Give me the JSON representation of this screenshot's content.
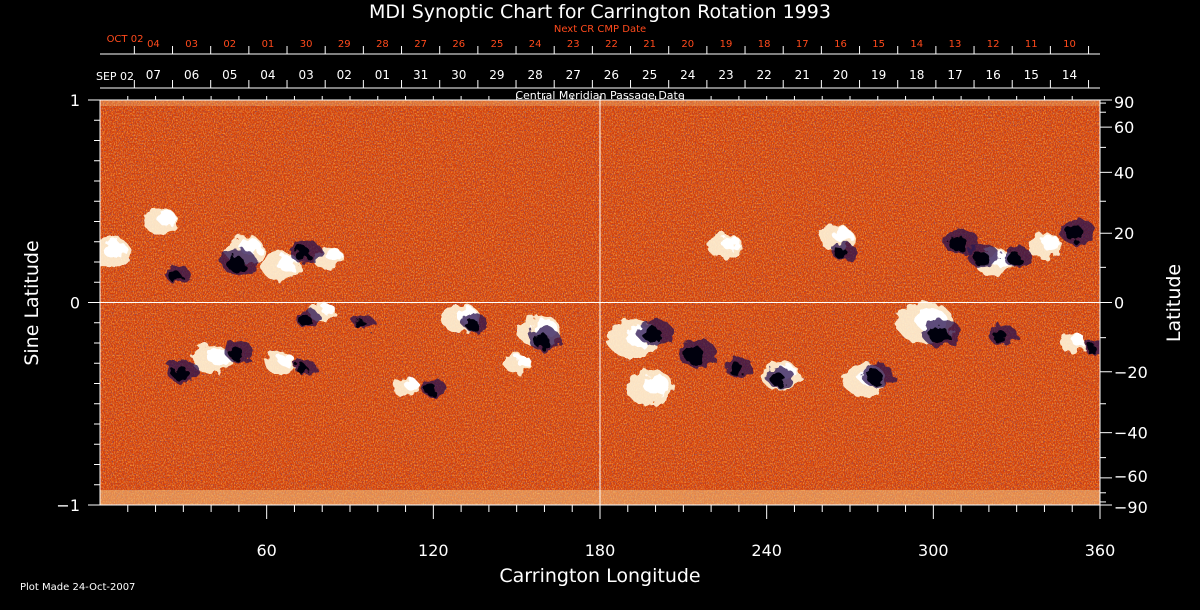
{
  "chart_data": {
    "type": "heatmap",
    "title": "MDI Synoptic Chart for Carrington Rotation 1993",
    "xlabel": "Carrington Longitude",
    "ylabel_left": "Sine Latitude",
    "ylabel_right": "Latitude",
    "xlim": [
      0,
      360
    ],
    "ylim": [
      -1,
      1
    ],
    "x_ticks": [
      "60",
      "120",
      "180",
      "240",
      "300",
      "360"
    ],
    "x_tick_values": [
      60,
      120,
      180,
      240,
      300,
      360
    ],
    "y_left_ticks": [
      {
        "value": 1,
        "label": "1"
      },
      {
        "value": 0,
        "label": "0"
      },
      {
        "value": -1,
        "label": "−1"
      }
    ],
    "y_right_ticks": [
      {
        "value": 90,
        "label": "90"
      },
      {
        "value": 60,
        "label": "60"
      },
      {
        "value": 40,
        "label": "40"
      },
      {
        "value": 20,
        "label": "20"
      },
      {
        "value": 0,
        "label": "0"
      },
      {
        "value": -20,
        "label": "−20"
      },
      {
        "value": -40,
        "label": "−40"
      },
      {
        "value": -60,
        "label": "−60"
      },
      {
        "value": -90,
        "label": "−90"
      }
    ],
    "top_axis_current": {
      "caption": "Central Meridian Passage Date",
      "start_label": "SEP 02",
      "dates": [
        "07",
        "06",
        "05",
        "04",
        "03",
        "02",
        "01",
        "31",
        "30",
        "29",
        "28",
        "27",
        "26",
        "25",
        "24",
        "23",
        "22",
        "21",
        "20",
        "19",
        "18",
        "17",
        "16",
        "15",
        "14"
      ]
    },
    "top_axis_next": {
      "caption": "Next CR CMP Date",
      "start_label": "OCT 02",
      "dates": [
        "04",
        "03",
        "02",
        "01",
        "30",
        "29",
        "28",
        "27",
        "26",
        "25",
        "24",
        "23",
        "22",
        "21",
        "20",
        "19",
        "18",
        "17",
        "16",
        "15",
        "14",
        "13",
        "12",
        "11",
        "10"
      ]
    },
    "gridlines": {
      "vertical_at_longitude": 180,
      "horizontal_at_sine_latitude": 0
    },
    "colors": {
      "background": "#000000",
      "field_base": "#d4400a",
      "positive_polarity": "#ffffff",
      "negative_polarity": "#1a1040",
      "axis": "#ffffff",
      "next_cr_labels": "#ff4a1c"
    },
    "footer": "Plot Made 24-Oct-2007",
    "positive_regions": [
      {
        "lon": 3,
        "sinlat": 0.25,
        "size": 1.0
      },
      {
        "lon": 22,
        "sinlat": 0.4,
        "size": 0.8
      },
      {
        "lon": 52,
        "sinlat": 0.26,
        "size": 0.9
      },
      {
        "lon": 65,
        "sinlat": 0.18,
        "size": 0.9
      },
      {
        "lon": 82,
        "sinlat": 0.22,
        "size": 0.7
      },
      {
        "lon": 80,
        "sinlat": -0.05,
        "size": 0.6
      },
      {
        "lon": 40,
        "sinlat": -0.28,
        "size": 0.9
      },
      {
        "lon": 65,
        "sinlat": -0.3,
        "size": 0.7
      },
      {
        "lon": 130,
        "sinlat": -0.08,
        "size": 0.9
      },
      {
        "lon": 158,
        "sinlat": -0.14,
        "size": 1.0
      },
      {
        "lon": 110,
        "sinlat": -0.42,
        "size": 0.6
      },
      {
        "lon": 150,
        "sinlat": -0.3,
        "size": 0.6
      },
      {
        "lon": 192,
        "sinlat": -0.18,
        "size": 1.2
      },
      {
        "lon": 198,
        "sinlat": -0.42,
        "size": 1.1
      },
      {
        "lon": 225,
        "sinlat": 0.28,
        "size": 0.8
      },
      {
        "lon": 245,
        "sinlat": -0.36,
        "size": 0.9
      },
      {
        "lon": 265,
        "sinlat": 0.32,
        "size": 0.8
      },
      {
        "lon": 275,
        "sinlat": -0.38,
        "size": 1.0
      },
      {
        "lon": 297,
        "sinlat": -0.1,
        "size": 1.3
      },
      {
        "lon": 322,
        "sinlat": 0.2,
        "size": 0.9
      },
      {
        "lon": 340,
        "sinlat": 0.28,
        "size": 0.8
      },
      {
        "lon": 350,
        "sinlat": -0.2,
        "size": 0.6
      }
    ],
    "negative_regions": [
      {
        "lon": 28,
        "sinlat": 0.14,
        "size": 0.7
      },
      {
        "lon": 50,
        "sinlat": 0.2,
        "size": 1.0
      },
      {
        "lon": 74,
        "sinlat": 0.25,
        "size": 0.9
      },
      {
        "lon": 30,
        "sinlat": -0.34,
        "size": 0.9
      },
      {
        "lon": 50,
        "sinlat": -0.24,
        "size": 0.8
      },
      {
        "lon": 74,
        "sinlat": -0.32,
        "size": 0.6
      },
      {
        "lon": 75,
        "sinlat": -0.08,
        "size": 0.7
      },
      {
        "lon": 95,
        "sinlat": -0.1,
        "size": 0.6
      },
      {
        "lon": 135,
        "sinlat": -0.1,
        "size": 0.7
      },
      {
        "lon": 160,
        "sinlat": -0.18,
        "size": 0.9
      },
      {
        "lon": 120,
        "sinlat": -0.42,
        "size": 0.7
      },
      {
        "lon": 200,
        "sinlat": -0.15,
        "size": 1.0
      },
      {
        "lon": 215,
        "sinlat": -0.25,
        "size": 1.1
      },
      {
        "lon": 230,
        "sinlat": -0.32,
        "size": 0.8
      },
      {
        "lon": 245,
        "sinlat": -0.37,
        "size": 0.8
      },
      {
        "lon": 268,
        "sinlat": 0.25,
        "size": 0.7
      },
      {
        "lon": 280,
        "sinlat": -0.36,
        "size": 0.9
      },
      {
        "lon": 303,
        "sinlat": -0.15,
        "size": 1.1
      },
      {
        "lon": 310,
        "sinlat": 0.3,
        "size": 1.0
      },
      {
        "lon": 318,
        "sinlat": 0.23,
        "size": 0.9
      },
      {
        "lon": 330,
        "sinlat": 0.23,
        "size": 0.8
      },
      {
        "lon": 352,
        "sinlat": 0.35,
        "size": 1.0
      },
      {
        "lon": 325,
        "sinlat": -0.16,
        "size": 0.8
      },
      {
        "lon": 358,
        "sinlat": -0.22,
        "size": 0.6
      }
    ]
  }
}
